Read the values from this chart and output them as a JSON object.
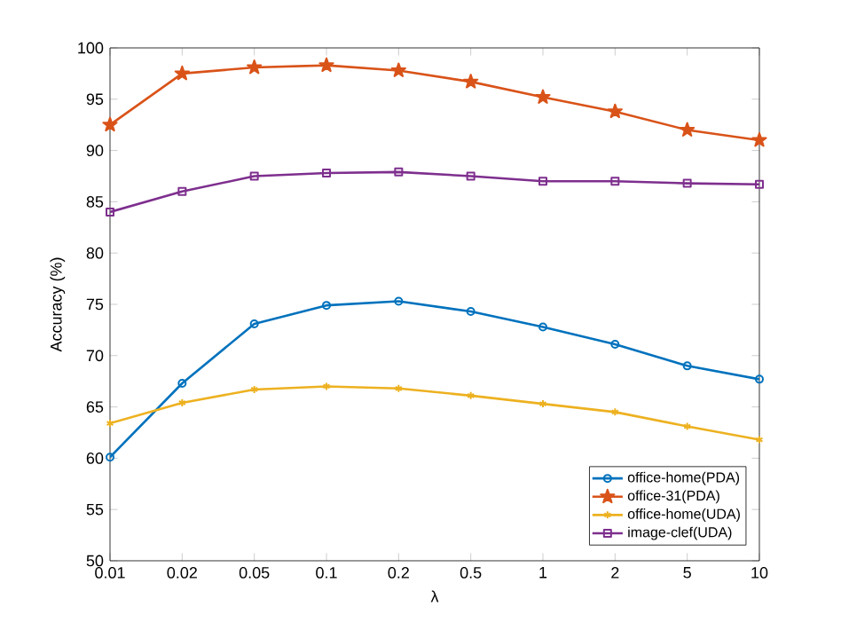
{
  "chart_data": {
    "type": "line",
    "xlabel": "λ",
    "ylabel": "Accuracy (%)",
    "categories": [
      "0.01",
      "0.02",
      "0.05",
      "0.1",
      "0.2",
      "0.5",
      "1",
      "2",
      "5",
      "10"
    ],
    "ylim": [
      50,
      100
    ],
    "yticks": [
      50,
      55,
      60,
      65,
      70,
      75,
      80,
      85,
      90,
      95,
      100
    ],
    "grid": false,
    "legend": "bottom right",
    "line_style": "solid",
    "series": [
      {
        "name": "office-home(PDA)",
        "color": "#0072bd",
        "marker": "circle",
        "values": [
          60.1,
          67.3,
          73.1,
          74.9,
          75.3,
          74.3,
          72.8,
          71.1,
          69.0,
          67.7
        ]
      },
      {
        "name": "office-31(PDA)",
        "color": "#d95319",
        "marker": "star",
        "values": [
          92.5,
          97.5,
          98.1,
          98.3,
          97.8,
          96.7,
          95.2,
          93.8,
          92.0,
          91.0
        ]
      },
      {
        "name": "office-home(UDA)",
        "color": "#edb120",
        "marker": "cross",
        "values": [
          63.4,
          65.4,
          66.7,
          67.0,
          66.8,
          66.1,
          65.3,
          64.5,
          63.1,
          61.8
        ]
      },
      {
        "name": "image-clef(UDA)",
        "color": "#7e2f8e",
        "marker": "square",
        "values": [
          84.0,
          86.0,
          87.5,
          87.8,
          87.9,
          87.5,
          87.0,
          87.0,
          86.8,
          86.7
        ]
      }
    ]
  }
}
